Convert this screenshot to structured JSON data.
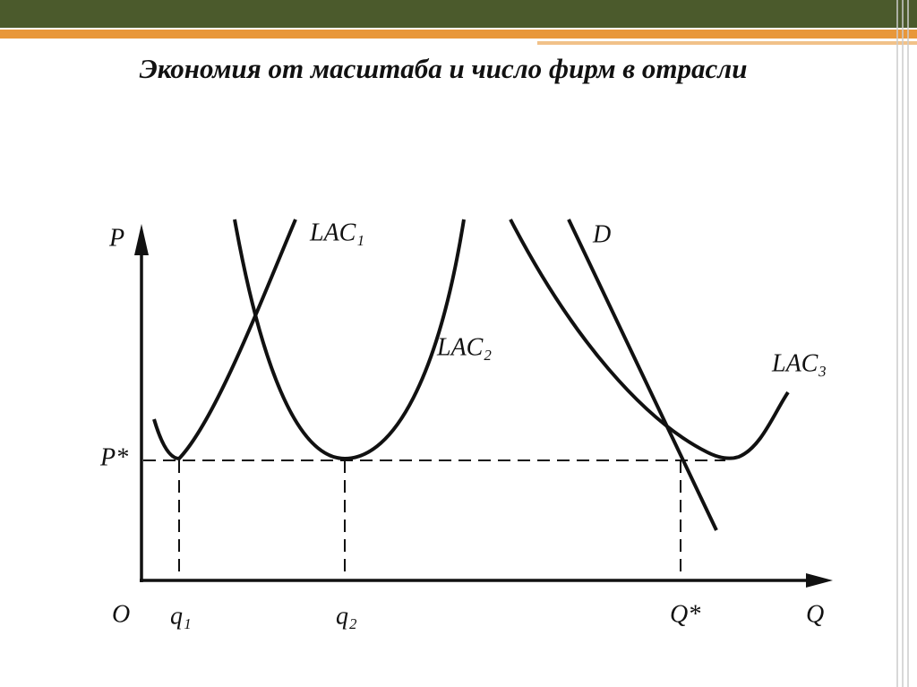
{
  "title": "Экономия от масштаба и число фирм в отрасли",
  "axes": {
    "y_label": "P",
    "x_label": "Q",
    "origin": "O"
  },
  "levels": {
    "price": "P*"
  },
  "quantities": [
    "q₁",
    "q₂",
    "Q*"
  ],
  "curves": {
    "lac1": "LAC₁",
    "lac2": "LAC₂",
    "lac3": "LAC₃",
    "demand": "D"
  }
}
